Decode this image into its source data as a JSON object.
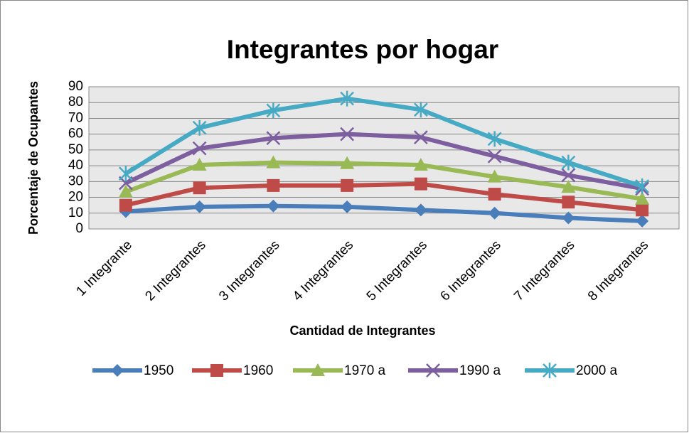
{
  "chart_data": {
    "type": "line",
    "title": "Integrantes por hogar",
    "x_label": "Cantidad de Integrantes",
    "y_label": "Porcentaje de Ocupantes",
    "categories": [
      "1 Integrante",
      "2 Integrantes",
      "3 Integrantes",
      "4 Integrantes",
      "5 Integrantes",
      "6 Integrantes",
      "7 Integrantes",
      "8 Integrantes"
    ],
    "series": [
      {
        "name": "1950",
        "color": "#4a7ebb",
        "marker": "diamond",
        "values": [
          11,
          14,
          14.5,
          14,
          12,
          10,
          7,
          5
        ]
      },
      {
        "name": "1960",
        "color": "#be4b48",
        "marker": "square",
        "values": [
          15,
          26,
          27.5,
          27.5,
          28.5,
          22,
          17,
          12
        ]
      },
      {
        "name": "1970 a",
        "color": "#98b954",
        "marker": "triangle",
        "values": [
          23.5,
          40.5,
          42,
          41.5,
          40.5,
          33,
          26.5,
          19
        ]
      },
      {
        "name": "1990 a",
        "color": "#7d5fa0",
        "marker": "x",
        "values": [
          29,
          51,
          57.5,
          60,
          58,
          46,
          34,
          25.5
        ]
      },
      {
        "name": "2000 a",
        "color": "#46aac5",
        "marker": "star",
        "values": [
          35,
          64,
          75,
          82.5,
          75.5,
          57,
          42,
          27
        ]
      }
    ],
    "ylim": [
      0,
      90
    ],
    "yticks": [
      0,
      10,
      20,
      30,
      40,
      50,
      60,
      70,
      80,
      90
    ],
    "grid": true,
    "legend": "bottom"
  }
}
